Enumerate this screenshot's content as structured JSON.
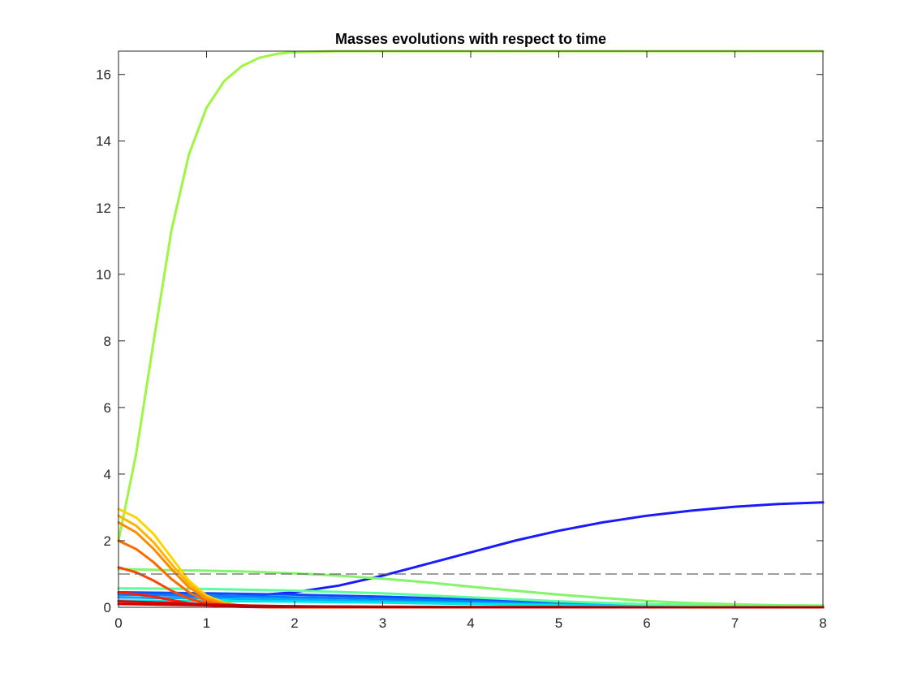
{
  "chart_data": {
    "type": "line",
    "title": "Masses evolutions with respect to time",
    "xlabel": "",
    "ylabel": "",
    "xlim": [
      0,
      8
    ],
    "ylim": [
      0,
      16.7
    ],
    "x_ticks": [
      0,
      1,
      2,
      3,
      4,
      5,
      6,
      7,
      8
    ],
    "y_ticks": [
      0,
      2,
      4,
      6,
      8,
      10,
      12,
      14,
      16
    ],
    "grid": false,
    "legend": "none",
    "reference_lines": [
      {
        "y": 1,
        "style": "dashed",
        "color": "#666666"
      }
    ],
    "series": [
      {
        "color": "#1a1aff",
        "x": [
          0,
          0.5,
          1,
          1.5,
          2,
          2.5,
          3,
          3.5,
          4,
          4.5,
          5,
          5.5,
          6,
          6.5,
          7,
          7.5,
          8
        ],
        "y": [
          0.3,
          0.28,
          0.3,
          0.35,
          0.45,
          0.65,
          0.95,
          1.3,
          1.65,
          2.0,
          2.3,
          2.55,
          2.75,
          2.9,
          3.02,
          3.1,
          3.15
        ]
      },
      {
        "color": "#0a4cff",
        "x": [
          0,
          1,
          2,
          3,
          4,
          5,
          6,
          7,
          8
        ],
        "y": [
          0.45,
          0.42,
          0.38,
          0.32,
          0.24,
          0.16,
          0.09,
          0.04,
          0.02
        ]
      },
      {
        "color": "#0a7dff",
        "x": [
          0,
          1,
          2,
          3,
          4,
          5,
          6,
          7,
          8
        ],
        "y": [
          0.38,
          0.35,
          0.3,
          0.25,
          0.18,
          0.11,
          0.06,
          0.03,
          0.01
        ]
      },
      {
        "color": "#00b0ff",
        "x": [
          0,
          1,
          2,
          3,
          4,
          5,
          6,
          7,
          8
        ],
        "y": [
          0.3,
          0.27,
          0.23,
          0.18,
          0.13,
          0.08,
          0.04,
          0.02,
          0.01
        ]
      },
      {
        "color": "#00e5e5",
        "x": [
          0,
          1,
          2,
          3,
          4,
          5,
          6,
          7,
          8
        ],
        "y": [
          0.2,
          0.19,
          0.17,
          0.14,
          0.1,
          0.06,
          0.03,
          0.01,
          0.0
        ]
      },
      {
        "color": "#5cff9f",
        "x": [
          0,
          1,
          2,
          3,
          4,
          5,
          6,
          7,
          8
        ],
        "y": [
          0.57,
          0.55,
          0.5,
          0.42,
          0.3,
          0.18,
          0.09,
          0.04,
          0.02
        ]
      },
      {
        "color": "#84f56a",
        "x": [
          0,
          0.5,
          1,
          1.5,
          2,
          2.5,
          3,
          3.5,
          4,
          4.5,
          5,
          5.5,
          6,
          6.5,
          7,
          7.5,
          8
        ],
        "y": [
          1.15,
          1.12,
          1.1,
          1.07,
          1.02,
          0.95,
          0.86,
          0.75,
          0.62,
          0.5,
          0.38,
          0.28,
          0.19,
          0.13,
          0.09,
          0.06,
          0.05
        ]
      },
      {
        "color": "#9ef542",
        "x": [
          0,
          0.2,
          0.4,
          0.6,
          0.8,
          1.0,
          1.2,
          1.4,
          1.6,
          1.8,
          2.0,
          2.5,
          3,
          4,
          5,
          6,
          7,
          8
        ],
        "y": [
          2.0,
          4.6,
          8.0,
          11.3,
          13.6,
          15.0,
          15.8,
          16.25,
          16.5,
          16.62,
          16.67,
          16.7,
          16.7,
          16.7,
          16.7,
          16.7,
          16.7,
          16.7
        ]
      },
      {
        "color": "#ffd500",
        "x": [
          0,
          0.2,
          0.4,
          0.6,
          0.8,
          1.0,
          1.2,
          1.4,
          1.6,
          1.8,
          2,
          3,
          4,
          5,
          6,
          7,
          8
        ],
        "y": [
          2.95,
          2.7,
          2.2,
          1.5,
          0.8,
          0.35,
          0.14,
          0.05,
          0.02,
          0.01,
          0.0,
          0.0,
          0.0,
          0.0,
          0.0,
          0.0,
          0.0
        ]
      },
      {
        "color": "#ffb400",
        "x": [
          0,
          0.2,
          0.4,
          0.6,
          0.8,
          1.0,
          1.2,
          1.4,
          1.6,
          1.8,
          2,
          3,
          4,
          5,
          6,
          7,
          8
        ],
        "y": [
          2.75,
          2.45,
          1.95,
          1.3,
          0.7,
          0.3,
          0.12,
          0.05,
          0.02,
          0.01,
          0.0,
          0.0,
          0.0,
          0.0,
          0.0,
          0.0,
          0.0
        ]
      },
      {
        "color": "#ff8c00",
        "x": [
          0,
          0.2,
          0.4,
          0.6,
          0.8,
          1.0,
          1.2,
          1.4,
          1.6,
          1.8,
          2,
          3,
          4,
          5,
          6,
          7,
          8
        ],
        "y": [
          2.55,
          2.25,
          1.75,
          1.15,
          0.6,
          0.25,
          0.1,
          0.04,
          0.02,
          0.01,
          0.0,
          0.0,
          0.0,
          0.0,
          0.0,
          0.0,
          0.0
        ]
      },
      {
        "color": "#ff6a00",
        "x": [
          0,
          0.2,
          0.4,
          0.6,
          0.8,
          1.0,
          1.2,
          1.4,
          1.6,
          1.8,
          2,
          3,
          4,
          5,
          6,
          7,
          8
        ],
        "y": [
          2.0,
          1.75,
          1.35,
          0.85,
          0.45,
          0.18,
          0.07,
          0.03,
          0.01,
          0.0,
          0.0,
          0.0,
          0.0,
          0.0,
          0.0,
          0.0,
          0.0
        ]
      },
      {
        "color": "#ff4500",
        "x": [
          0,
          0.2,
          0.4,
          0.6,
          0.8,
          1.0,
          1.2,
          1.4,
          1.6,
          2,
          3,
          4,
          5,
          6,
          7,
          8
        ],
        "y": [
          1.2,
          1.05,
          0.8,
          0.5,
          0.26,
          0.11,
          0.04,
          0.02,
          0.01,
          0.0,
          0.0,
          0.0,
          0.0,
          0.0,
          0.0,
          0.0
        ]
      },
      {
        "color": "#ff2000",
        "x": [
          0,
          0.2,
          0.4,
          0.6,
          0.8,
          1.0,
          1.2,
          1.5,
          2,
          3,
          4,
          5,
          6,
          7,
          8
        ],
        "y": [
          0.45,
          0.4,
          0.32,
          0.22,
          0.12,
          0.06,
          0.03,
          0.01,
          0.0,
          0.0,
          0.0,
          0.0,
          0.0,
          0.0,
          0.0
        ]
      },
      {
        "color": "#e00000",
        "x": [
          0,
          0.5,
          1,
          1.5,
          2,
          3,
          4,
          5,
          6,
          7,
          8
        ],
        "y": [
          0.18,
          0.14,
          0.09,
          0.05,
          0.03,
          0.01,
          0.0,
          0.0,
          0.0,
          0.0,
          0.0
        ]
      },
      {
        "color": "#cc0000",
        "x": [
          0,
          0.5,
          1,
          1.5,
          2,
          3,
          4,
          5,
          6,
          7,
          8
        ],
        "y": [
          0.1,
          0.08,
          0.06,
          0.04,
          0.03,
          0.02,
          0.01,
          0.01,
          0.0,
          0.0,
          0.0
        ]
      }
    ]
  }
}
